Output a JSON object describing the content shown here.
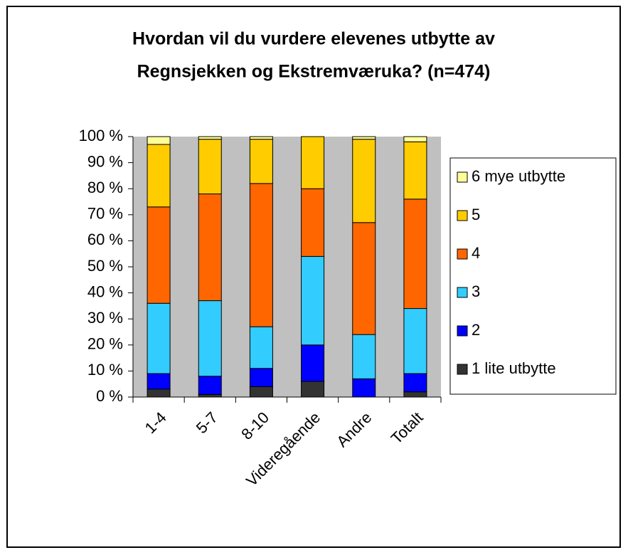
{
  "chart_data": {
    "type": "stacked_bar_100",
    "title": [
      "Hvordan vil du vurdere elevenes utbytte av",
      "Regnsjekken og Ekstremværuka? (n=474)"
    ],
    "categories": [
      "1-4",
      "5-7",
      "8-10",
      "Videregående",
      "Andre",
      "Totalt"
    ],
    "series": [
      {
        "name": "1 lite utbytte",
        "color": "#333333",
        "values": [
          3,
          1,
          4,
          6,
          0,
          2
        ]
      },
      {
        "name": "2",
        "color": "#0000ff",
        "values": [
          6,
          7,
          7,
          14,
          7,
          7
        ]
      },
      {
        "name": "3",
        "color": "#33ccff",
        "values": [
          27,
          29,
          16,
          34,
          17,
          25
        ]
      },
      {
        "name": "4",
        "color": "#ff6600",
        "values": [
          37,
          41,
          55,
          26,
          43,
          42
        ]
      },
      {
        "name": "5",
        "color": "#ffcc00",
        "values": [
          24,
          21,
          17,
          20,
          32,
          22
        ]
      },
      {
        "name": "6 mye utbytte",
        "color": "#ffff99",
        "values": [
          3,
          1,
          1,
          0,
          1,
          2
        ]
      }
    ],
    "ylim": [
      0,
      100
    ],
    "yticks": [
      {
        "value": 0,
        "label": "0 %"
      },
      {
        "value": 10,
        "label": "10 %"
      },
      {
        "value": 20,
        "label": "20 %"
      },
      {
        "value": 30,
        "label": "30 %"
      },
      {
        "value": 40,
        "label": "40 %"
      },
      {
        "value": 50,
        "label": "50 %"
      },
      {
        "value": 60,
        "label": "60 %"
      },
      {
        "value": 70,
        "label": "70 %"
      },
      {
        "value": 80,
        "label": "80 %"
      },
      {
        "value": 90,
        "label": "90 %"
      },
      {
        "value": 100,
        "label": "100 %"
      }
    ],
    "plot_background": "#c0c0c0",
    "legend": "right"
  }
}
